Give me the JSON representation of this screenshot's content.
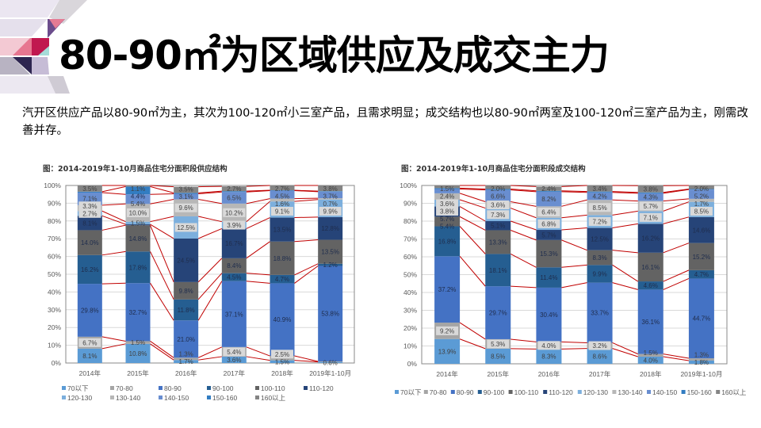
{
  "header": {
    "title": "80-90㎡为区域供应及成交主力",
    "description": "汽开区供应产品以80-90㎡为主，其次为100-120㎡小三室产品，且需求明显；成交结构也以80-90㎡两室及100-120㎡三室产品为主，刚需改善并存。"
  },
  "colors": {
    "70以下": "#5b9bd5",
    "70-80": "#a5a5a5",
    "80-90": "#4472c4",
    "90-100": "#255e91",
    "100-110": "#636363",
    "110-120": "#264478",
    "120-130": "#7cafdd",
    "130-140": "#b7b7b7",
    "140-150": "#698ed0",
    "150-160": "#327dc2",
    "160以上": "#848484",
    "series_line": "#c00000"
  },
  "chart_data": [
    {
      "type": "bar",
      "stacked": "percent",
      "title": "图：2014-2019年1-10月商品住宅分面积段供应结构",
      "categories": [
        "2014年",
        "2015年",
        "2016年",
        "2017年",
        "2018年",
        "2019年1-10月"
      ],
      "yticks": [
        "0%",
        "10%",
        "20%",
        "30%",
        "40%",
        "50%",
        "60%",
        "70%",
        "80%",
        "90%",
        "100%"
      ],
      "ylim": [
        0,
        100
      ],
      "grid": true,
      "legend_position": "bottom",
      "series_lines": true,
      "series": [
        {
          "name": "70以下",
          "values": [
            8.1,
            10.8,
            1.7,
            3.6,
            1.5,
            0.6
          ]
        },
        {
          "name": "70-80",
          "values": [
            6.7,
            1.5,
            1.3,
            5.4,
            2.5,
            0.3
          ]
        },
        {
          "name": "80-90",
          "values": [
            29.8,
            32.7,
            21.0,
            37.1,
            40.9,
            53.8
          ]
        },
        {
          "name": "90-100",
          "values": [
            16.2,
            17.8,
            11.8,
            4.5,
            4.7,
            1.2
          ]
        },
        {
          "name": "100-110",
          "values": [
            14.0,
            14.8,
            9.8,
            8.4,
            18.8,
            13.5
          ]
        },
        {
          "name": "110-120",
          "values": [
            8.1,
            0.5,
            24.5,
            16.7,
            13.5,
            12.8
          ]
        },
        {
          "name": "120-130",
          "values": [
            2.7,
            1.5,
            12.5,
            3.9,
            9.1,
            9.9
          ]
        },
        {
          "name": "130-140",
          "values": [
            3.3,
            10.0,
            9.6,
            10.2,
            1.6,
            0.7
          ]
        },
        {
          "name": "140-150",
          "values": [
            7.1,
            5.4,
            3.1,
            6.5,
            4.5,
            3.7
          ]
        },
        {
          "name": "150-160",
          "values": [
            0.5,
            4.4,
            0.5,
            0.5,
            0.2,
            0.3
          ]
        },
        {
          "name": "160以上",
          "values": [
            3.5,
            1.1,
            3.5,
            2.7,
            2.7,
            3.8
          ]
        }
      ]
    },
    {
      "type": "bar",
      "stacked": "percent",
      "title": "图：2014-2019年1-10月商品住宅分面积段成交结构",
      "categories": [
        "2014年",
        "2015年",
        "2016年",
        "2017年",
        "2018年",
        "2019年1-10月"
      ],
      "yticks": [
        "0%",
        "10%",
        "20%",
        "30%",
        "40%",
        "50%",
        "60%",
        "70%",
        "80%",
        "90%",
        "100%"
      ],
      "ylim": [
        0,
        100
      ],
      "grid": true,
      "legend_position": "bottom",
      "series_lines": true,
      "series": [
        {
          "name": "70以下",
          "values": [
            13.9,
            8.5,
            8.3,
            8.6,
            4.0,
            1.8
          ]
        },
        {
          "name": "70-80",
          "values": [
            9.2,
            5.3,
            4.0,
            3.2,
            1.5,
            1.3
          ]
        },
        {
          "name": "80-90",
          "values": [
            37.2,
            29.7,
            30.4,
            33.7,
            36.1,
            44.7
          ]
        },
        {
          "name": "90-100",
          "values": [
            16.8,
            18.1,
            11.4,
            9.9,
            4.6,
            4.7
          ]
        },
        {
          "name": "100-110",
          "values": [
            5.4,
            13.3,
            15.3,
            8.3,
            16.1,
            15.2
          ]
        },
        {
          "name": "110-120",
          "values": [
            5.7,
            5.1,
            5.7,
            12.5,
            16.2,
            14.6
          ]
        },
        {
          "name": "120-130",
          "values": [
            3.8,
            7.3,
            6.8,
            7.2,
            7.1,
            8.5
          ]
        },
        {
          "name": "130-140",
          "values": [
            3.6,
            3.6,
            6.4,
            8.5,
            5.7,
            1.7
          ]
        },
        {
          "name": "140-150",
          "values": [
            2.4,
            6.6,
            8.2,
            4.2,
            4.3,
            5.2
          ]
        },
        {
          "name": "150-160",
          "values": [
            0.5,
            0.5,
            0.5,
            0.5,
            0.5,
            0.3
          ]
        },
        {
          "name": "160以上",
          "values": [
            1.5,
            2.0,
            2.4,
            3.4,
            3.8,
            2.0
          ]
        }
      ]
    }
  ]
}
